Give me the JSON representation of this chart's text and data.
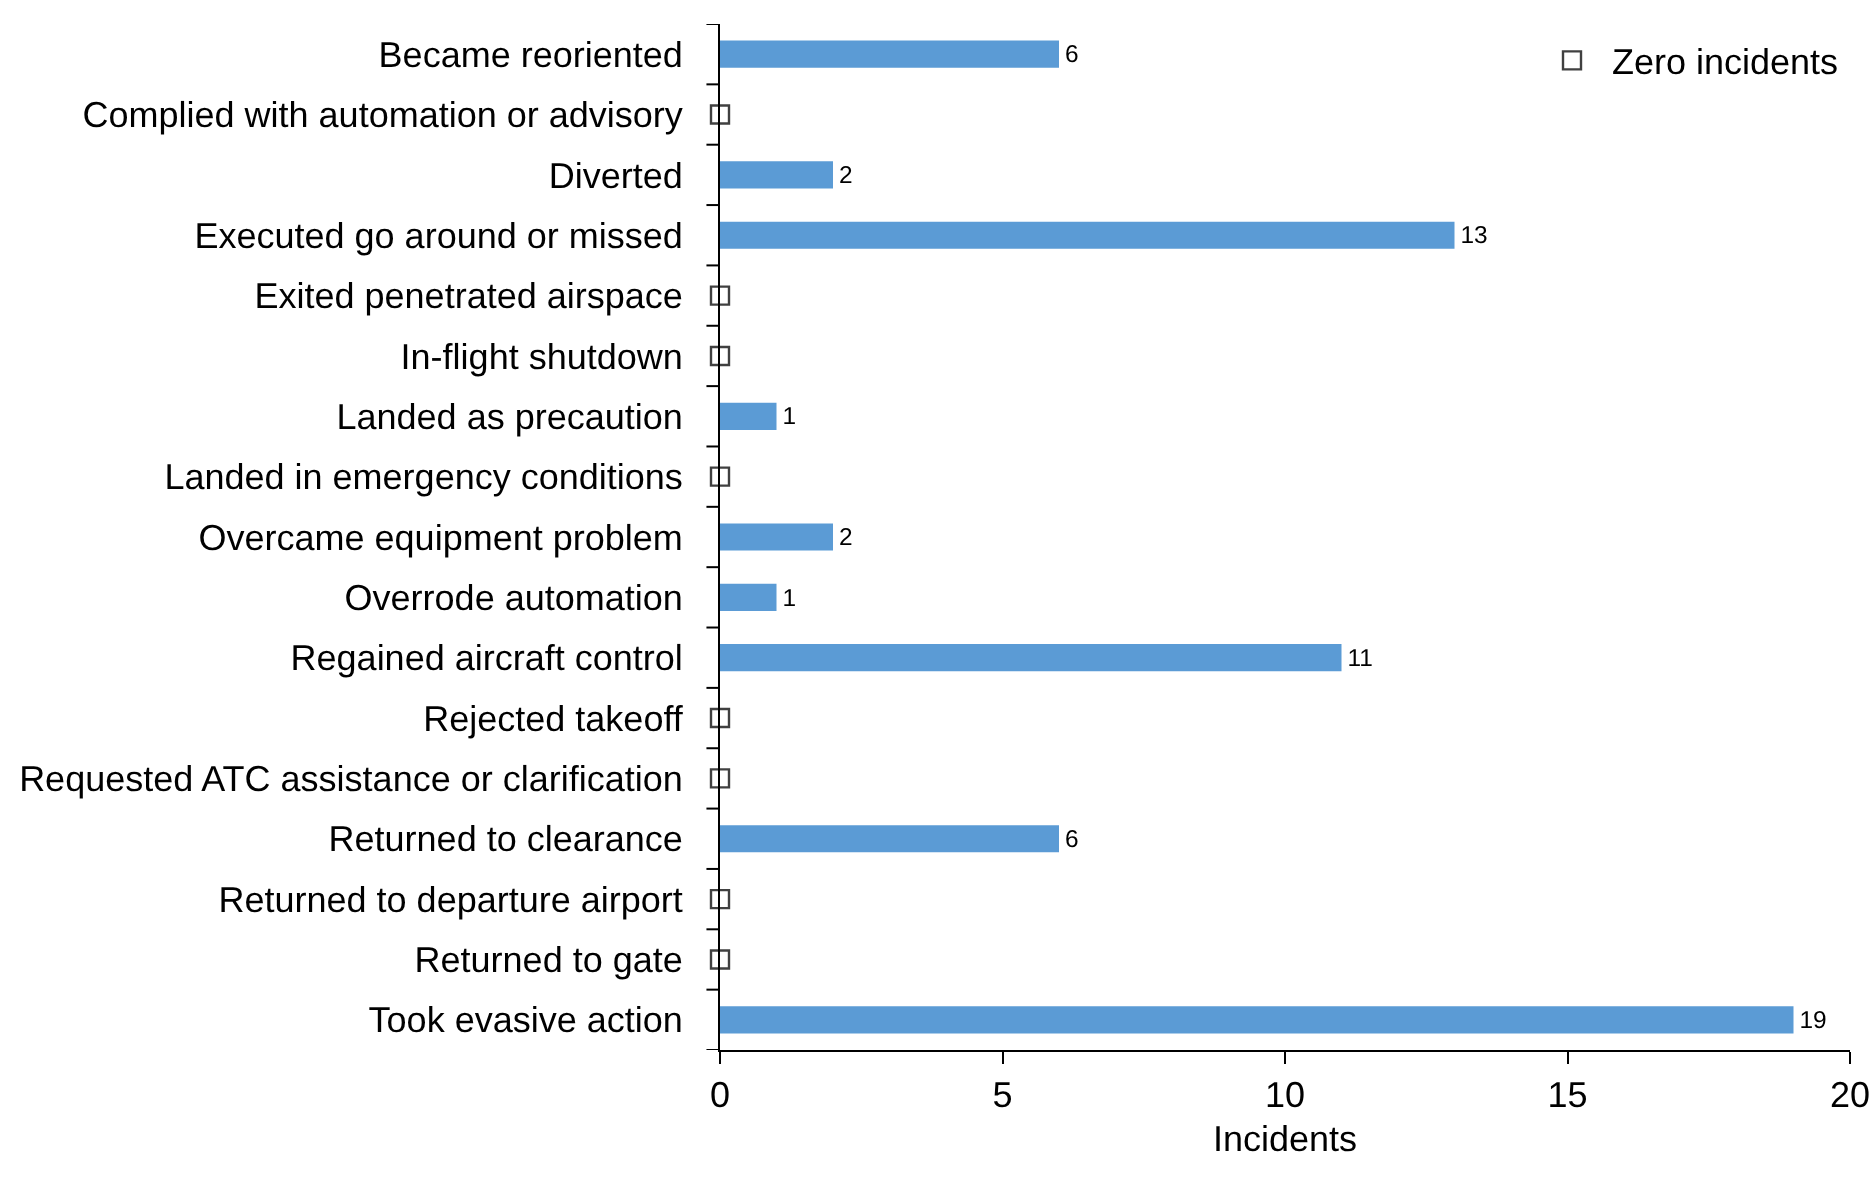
{
  "chart_data": {
    "type": "bar",
    "orientation": "horizontal",
    "xlabel": "Incidents",
    "categories": [
      "Became reoriented",
      "Complied with automation or advisory",
      "Diverted",
      "Executed go around or missed",
      "Exited penetrated airspace",
      "In-flight shutdown",
      "Landed as precaution",
      "Landed in emergency conditions",
      "Overcame equipment problem",
      "Overrode automation",
      "Regained aircraft control",
      "Rejected takeoff",
      "Requested ATC assistance or clarification",
      "Returned to clearance",
      "Returned to departure airport",
      "Returned to gate",
      "Took evasive action"
    ],
    "series": [
      {
        "type": "bar",
        "color": "#5b9bd5",
        "values": [
          6,
          null,
          2,
          13,
          null,
          null,
          1,
          null,
          2,
          1,
          11,
          null,
          null,
          6,
          null,
          null,
          19
        ],
        "value_labels": [
          "6",
          null,
          "2",
          "13",
          null,
          null,
          "1",
          null,
          "2",
          "1",
          "11",
          null,
          null,
          "6",
          null,
          null,
          "19"
        ]
      },
      {
        "type": "scatter",
        "name": "Zero incidents",
        "color": "#404040",
        "marker": "square",
        "values": [
          null,
          0,
          null,
          null,
          0,
          0,
          null,
          0,
          null,
          null,
          null,
          0,
          0,
          null,
          0,
          0,
          null
        ]
      }
    ],
    "xlim": [
      0,
      20
    ],
    "xticks": [
      0,
      5,
      10,
      15,
      20
    ],
    "grid": false,
    "legend": "top right"
  }
}
